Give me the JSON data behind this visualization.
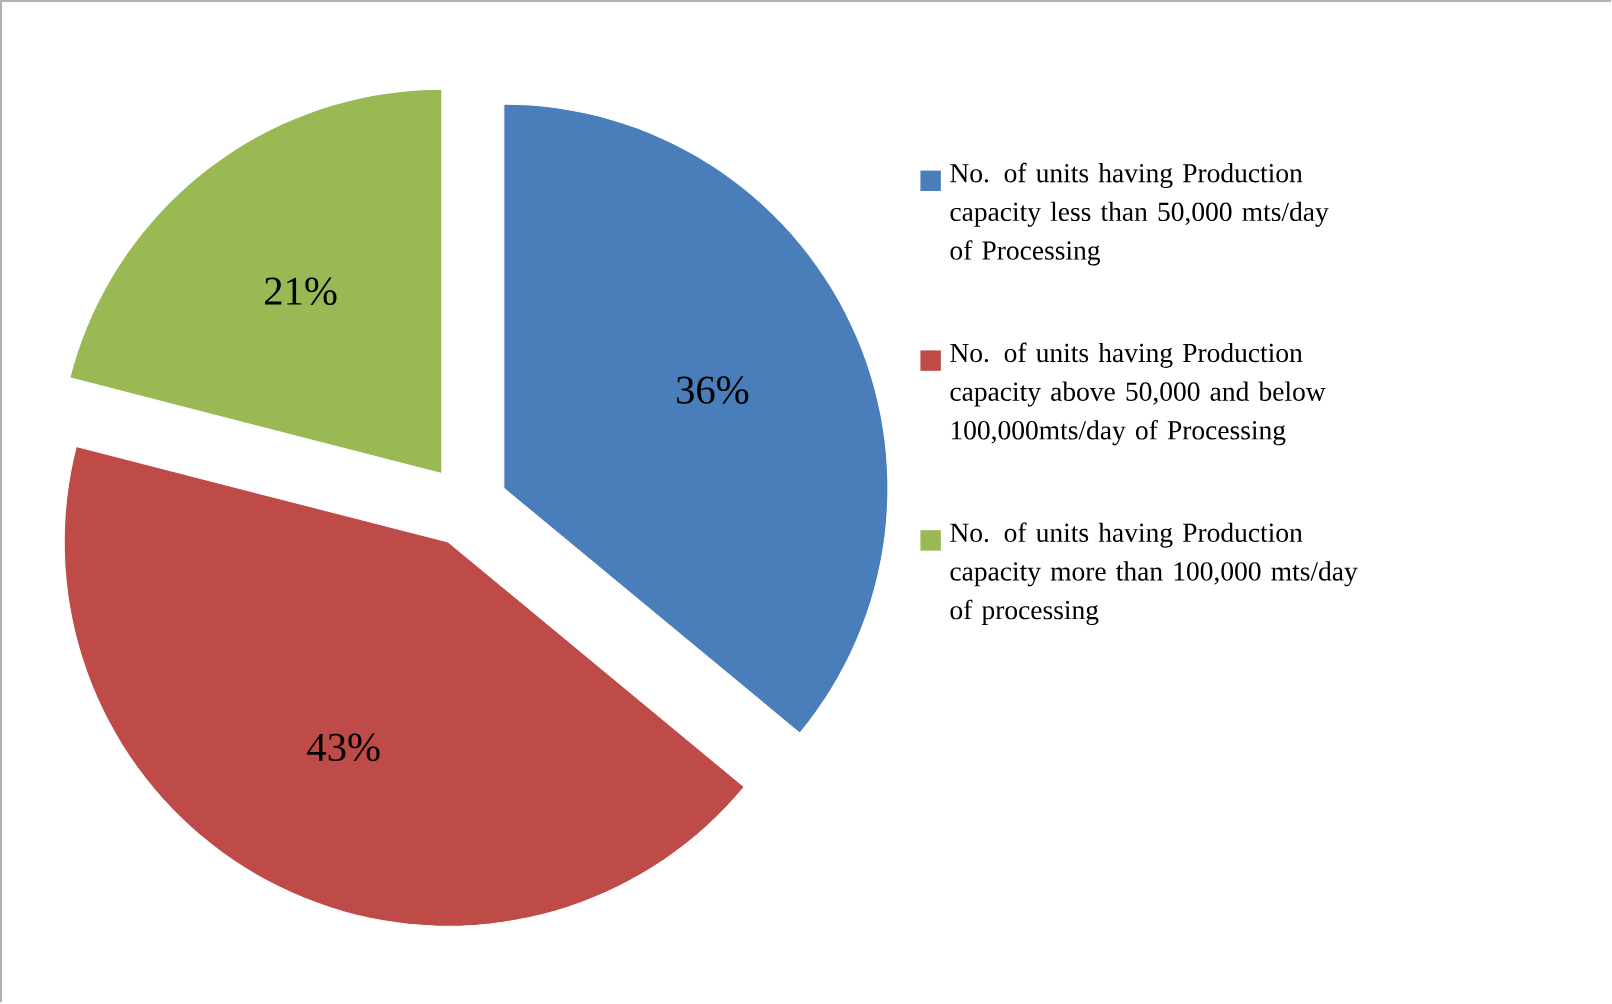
{
  "chart_data": {
    "type": "pie",
    "categories": [
      "No. of units having Production capacity less than 50,000 mts/day of Processing",
      "No. of units having Production capacity above 50,000 and below 100,000mts/day of Processing",
      "No. of units having Production capacity more than 100,000 mts/day of processing"
    ],
    "values": [
      36,
      43,
      21
    ],
    "value_labels": [
      "36%",
      "43%",
      "21%"
    ],
    "colors": [
      "#4a7ebb",
      "#be4b48",
      "#98b954"
    ],
    "legend": "right"
  }
}
